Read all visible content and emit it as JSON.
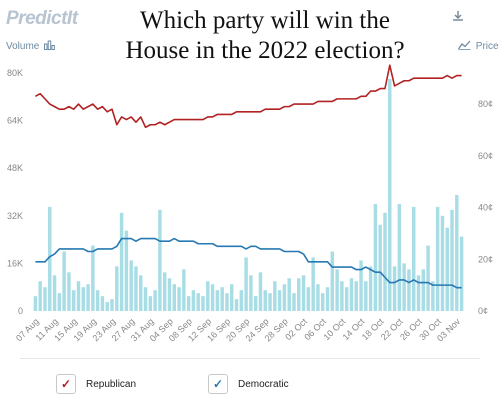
{
  "header": {
    "logo_text": "PredictIt",
    "title_line1": "Which party will win the",
    "title_line2": "House in the 2022 election?",
    "download_icon": "download-icon",
    "volume_label": "Volume",
    "volume_icon": "bar-chart-icon",
    "price_label": "Price",
    "price_icon": "trend-line-icon"
  },
  "legend": {
    "republican_label": "Republican",
    "democratic_label": "Democratic",
    "check_icon": "checkmark-icon"
  },
  "colors": {
    "republican": "#b22222",
    "democratic": "#2779b3",
    "volume_bar": "#a8dde6",
    "axis_text": "#888888"
  },
  "chart_data": {
    "type": "line",
    "x": [
      "07 Aug",
      "08 Aug",
      "09 Aug",
      "10 Aug",
      "11 Aug",
      "12 Aug",
      "13 Aug",
      "14 Aug",
      "15 Aug",
      "16 Aug",
      "17 Aug",
      "18 Aug",
      "19 Aug",
      "20 Aug",
      "21 Aug",
      "22 Aug",
      "23 Aug",
      "24 Aug",
      "25 Aug",
      "26 Aug",
      "27 Aug",
      "28 Aug",
      "29 Aug",
      "30 Aug",
      "31 Aug",
      "01 Sep",
      "02 Sep",
      "03 Sep",
      "04 Sep",
      "05 Sep",
      "06 Sep",
      "07 Sep",
      "08 Sep",
      "09 Sep",
      "10 Sep",
      "11 Sep",
      "12 Sep",
      "13 Sep",
      "14 Sep",
      "15 Sep",
      "16 Sep",
      "17 Sep",
      "18 Sep",
      "19 Sep",
      "20 Sep",
      "21 Sep",
      "22 Sep",
      "23 Sep",
      "24 Sep",
      "25 Sep",
      "26 Sep",
      "27 Sep",
      "28 Sep",
      "29 Sep",
      "30 Sep",
      "01 Oct",
      "02 Oct",
      "03 Oct",
      "04 Oct",
      "05 Oct",
      "06 Oct",
      "07 Oct",
      "08 Oct",
      "09 Oct",
      "10 Oct",
      "11 Oct",
      "12 Oct",
      "13 Oct",
      "14 Oct",
      "15 Oct",
      "16 Oct",
      "17 Oct",
      "18 Oct",
      "19 Oct",
      "20 Oct",
      "21 Oct",
      "22 Oct",
      "23 Oct",
      "24 Oct",
      "25 Oct",
      "26 Oct",
      "27 Oct",
      "28 Oct",
      "29 Oct",
      "30 Oct",
      "31 Oct",
      "01 Nov",
      "02 Nov",
      "03 Nov",
      "04 Nov"
    ],
    "x_tick_labels": [
      "07 Aug",
      "11 Aug",
      "15 Aug",
      "19 Aug",
      "23 Aug",
      "27 Aug",
      "31 Aug",
      "04 Sep",
      "08 Sep",
      "12 Sep",
      "16 Sep",
      "20 Sep",
      "24 Sep",
      "28 Sep",
      "02 Oct",
      "06 Oct",
      "10 Oct",
      "14 Oct",
      "18 Oct",
      "22 Oct",
      "26 Oct",
      "30 Oct",
      "03 Nov"
    ],
    "series": [
      {
        "name": "Republican",
        "axis": "price",
        "unit": "¢",
        "values": [
          83,
          84,
          82,
          80,
          79,
          78,
          78,
          79,
          78,
          80,
          78,
          79,
          80,
          78,
          79,
          77,
          78,
          72,
          75,
          74,
          75,
          73,
          75,
          71,
          72,
          72,
          73,
          72,
          73,
          74,
          74,
          74,
          74,
          74,
          74,
          74,
          75,
          75,
          76,
          76,
          76,
          76,
          77,
          77,
          77,
          77,
          77,
          77,
          78,
          78,
          78,
          78,
          79,
          79,
          80,
          80,
          80,
          80,
          80,
          81,
          81,
          81,
          81,
          82,
          82,
          82,
          82,
          82,
          83,
          83,
          85,
          85,
          86,
          86,
          95,
          87,
          88,
          89,
          89,
          90,
          90,
          90,
          90,
          90,
          90,
          90,
          91,
          90,
          91,
          91
        ]
      },
      {
        "name": "Democratic",
        "axis": "price",
        "unit": "¢",
        "values": [
          19,
          19,
          19,
          21,
          22,
          24,
          24,
          24,
          24,
          24,
          24,
          23,
          23,
          24,
          24,
          24,
          24,
          25,
          28,
          28,
          28,
          27,
          28,
          28,
          28,
          28,
          27,
          27,
          27,
          28,
          27,
          27,
          27,
          27,
          26,
          26,
          26,
          26,
          25,
          25,
          25,
          25,
          25,
          25,
          24,
          25,
          25,
          24,
          24,
          24,
          24,
          24,
          23,
          23,
          23,
          23,
          22,
          19,
          19,
          19,
          19,
          19,
          17,
          17,
          17,
          17,
          17,
          16,
          16,
          17,
          16,
          15,
          15,
          13,
          11,
          11,
          12,
          12,
          11,
          12,
          11,
          11,
          11,
          10,
          10,
          10,
          10,
          10,
          9,
          9
        ]
      },
      {
        "name": "Volume",
        "axis": "volume",
        "values": [
          5000,
          10000,
          8000,
          35000,
          12000,
          6000,
          20000,
          13000,
          7000,
          10000,
          8000,
          9000,
          22000,
          7000,
          5000,
          3000,
          4000,
          15000,
          33000,
          27000,
          17000,
          15000,
          12000,
          8000,
          5000,
          7000,
          34000,
          13000,
          11000,
          9000,
          8000,
          14000,
          5000,
          7000,
          6000,
          5000,
          10000,
          9000,
          7000,
          8000,
          6000,
          9000,
          4000,
          7000,
          18000,
          12000,
          5000,
          13000,
          7000,
          6000,
          10000,
          7000,
          9000,
          11000,
          6000,
          11000,
          12000,
          8000,
          18000,
          9000,
          6000,
          8000,
          20000,
          14000,
          10000,
          8000,
          11000,
          10000,
          17000,
          10000,
          15000,
          36000,
          29000,
          33000,
          78000,
          15000,
          36000,
          16000,
          14000,
          35000,
          12000,
          14000,
          22000,
          10000,
          35000,
          32000,
          28000,
          34000,
          39000,
          25000
        ]
      }
    ],
    "y_left": {
      "ticks": [
        "0",
        "16K",
        "32K",
        "48K",
        "64K",
        "80K"
      ],
      "range": [
        0,
        80000
      ]
    },
    "y_right": {
      "ticks": [
        "0¢",
        "20¢",
        "40¢",
        "60¢",
        "80¢"
      ],
      "range": [
        0,
        92
      ]
    },
    "grid": false
  }
}
